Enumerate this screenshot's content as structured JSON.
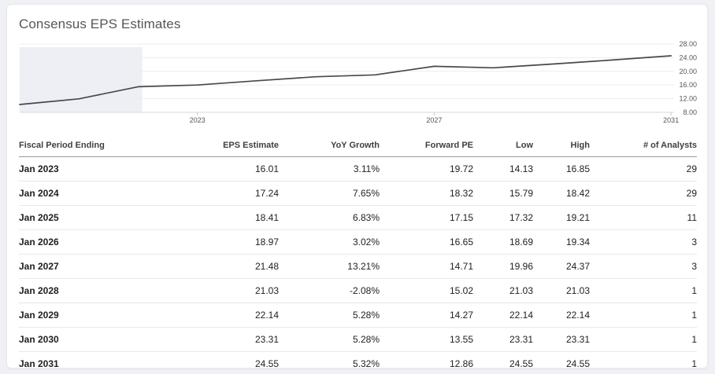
{
  "card": {
    "title": "Consensus EPS Estimates"
  },
  "chart_data": {
    "type": "line",
    "title": "Consensus EPS Estimates",
    "series": [
      {
        "name": "EPS Estimate",
        "x": [
          2020,
          2021,
          2022,
          2023,
          2024,
          2025,
          2026,
          2027,
          2028,
          2029,
          2030,
          2031
        ],
        "values": [
          10.3,
          11.95,
          15.5,
          16.01,
          17.24,
          18.41,
          18.97,
          21.48,
          21.03,
          22.14,
          23.31,
          24.55
        ]
      }
    ],
    "x_ticks": [
      2023,
      2027,
      2031
    ],
    "x_tick_labels": [
      "2023",
      "2027",
      "2031"
    ],
    "y_ticks": [
      8,
      12,
      16,
      20,
      24,
      28
    ],
    "y_tick_labels": [
      "8.00",
      "12.00",
      "16.00",
      "20.00",
      "24.00",
      "28.00"
    ],
    "xlim": [
      2020,
      2031
    ],
    "ylim": [
      8,
      28
    ],
    "grid": true,
    "legend": "none",
    "y_axis_position": "right",
    "historical_shaded_region": {
      "from_year": 2020,
      "to_year": 2022.07
    },
    "line_color": "#47484d",
    "shade_color": "#edeff4"
  },
  "table": {
    "columns": [
      {
        "label": "Fiscal Period Ending",
        "align": "left"
      },
      {
        "label": "EPS Estimate",
        "align": "right"
      },
      {
        "label": "YoY Growth",
        "align": "right"
      },
      {
        "label": "Forward PE",
        "align": "right"
      },
      {
        "label": "Low",
        "align": "right"
      },
      {
        "label": "High",
        "align": "right"
      },
      {
        "label": "# of Analysts",
        "align": "right"
      }
    ],
    "rows": [
      [
        "Jan 2023",
        "16.01",
        "3.11%",
        "19.72",
        "14.13",
        "16.85",
        "29"
      ],
      [
        "Jan 2024",
        "17.24",
        "7.65%",
        "18.32",
        "15.79",
        "18.42",
        "29"
      ],
      [
        "Jan 2025",
        "18.41",
        "6.83%",
        "17.15",
        "17.32",
        "19.21",
        "11"
      ],
      [
        "Jan 2026",
        "18.97",
        "3.02%",
        "16.65",
        "18.69",
        "19.34",
        "3"
      ],
      [
        "Jan 2027",
        "21.48",
        "13.21%",
        "14.71",
        "19.96",
        "24.37",
        "3"
      ],
      [
        "Jan 2028",
        "21.03",
        "-2.08%",
        "15.02",
        "21.03",
        "21.03",
        "1"
      ],
      [
        "Jan 2029",
        "22.14",
        "5.28%",
        "14.27",
        "22.14",
        "22.14",
        "1"
      ],
      [
        "Jan 2030",
        "23.31",
        "5.28%",
        "13.55",
        "23.31",
        "23.31",
        "1"
      ],
      [
        "Jan 2031",
        "24.55",
        "5.32%",
        "12.86",
        "24.55",
        "24.55",
        "1"
      ]
    ]
  }
}
